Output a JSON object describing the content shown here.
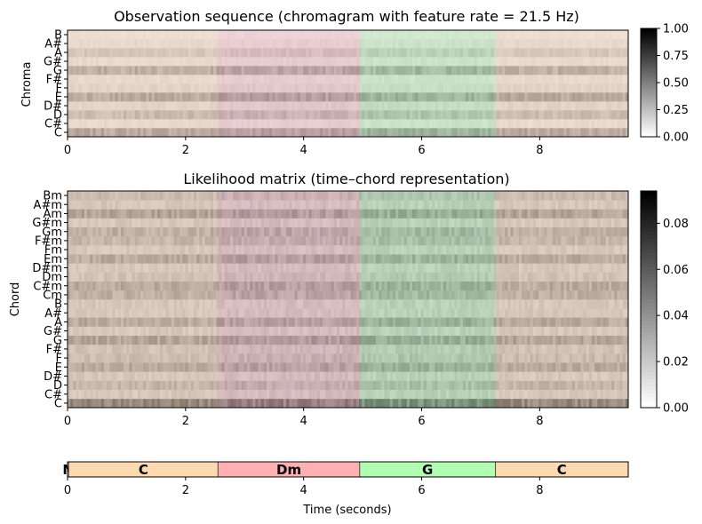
{
  "chart_data": [
    {
      "type": "heatmap",
      "title": "Observation sequence (chromagram with feature rate = 21.5 Hz)",
      "ylabel": "Chroma",
      "xlabel": "",
      "xlim": [
        0,
        9.5
      ],
      "x_ticks": [
        0,
        2,
        4,
        6,
        8
      ],
      "y_tick_labels": [
        "C",
        "C#",
        "D",
        "D#",
        "E",
        "F",
        "F#",
        "G",
        "G#",
        "A",
        "A#",
        "B"
      ],
      "colorbar": {
        "range": [
          0,
          1.0
        ],
        "ticks": [
          "0.00",
          "0.25",
          "0.50",
          "0.75",
          "1.00"
        ]
      },
      "row_intensity": [
        0.55,
        0.15,
        0.4,
        0.2,
        0.55,
        0.2,
        0.15,
        0.5,
        0.15,
        0.3,
        0.15,
        0.1
      ],
      "segments": [
        {
          "label": "C",
          "start": 0.0,
          "end": 2.55,
          "color": "#f6d9c2"
        },
        {
          "label": "Dm",
          "start": 2.55,
          "end": 4.95,
          "color": "#f3c2c8"
        },
        {
          "label": "G",
          "start": 4.95,
          "end": 7.25,
          "color": "#bfe9bf"
        },
        {
          "label": "C",
          "start": 7.25,
          "end": 9.5,
          "color": "#f6d9c2"
        }
      ]
    },
    {
      "type": "heatmap",
      "title": "Likelihood matrix (time–chord representation)",
      "ylabel": "Chord",
      "xlabel": "",
      "xlim": [
        0,
        9.5
      ],
      "x_ticks": [
        0,
        2,
        4,
        6,
        8
      ],
      "y_tick_labels": [
        "C",
        "C#",
        "D",
        "D#",
        "E",
        "F",
        "F#",
        "G",
        "G#",
        "A",
        "A#",
        "B",
        "Cm",
        "C#m",
        "Dm",
        "D#m",
        "Em",
        "Fm",
        "F#m",
        "Gm",
        "G#m",
        "Am",
        "A#m",
        "Bm"
      ],
      "colorbar": {
        "range": [
          0,
          0.094
        ],
        "ticks": [
          "0.00",
          "0.02",
          "0.04",
          "0.06",
          "0.08"
        ]
      },
      "row_intensity": [
        0.85,
        0.3,
        0.45,
        0.3,
        0.55,
        0.4,
        0.35,
        0.6,
        0.3,
        0.55,
        0.3,
        0.3,
        0.5,
        0.55,
        0.35,
        0.3,
        0.55,
        0.3,
        0.45,
        0.5,
        0.3,
        0.6,
        0.3,
        0.4
      ]
    },
    {
      "type": "bar",
      "subtype": "segment-timeline",
      "xlabel": "Time (seconds)",
      "xlim": [
        0,
        9.5
      ],
      "x_ticks": [
        0,
        2,
        4,
        6,
        8
      ],
      "segments": [
        {
          "label": "N",
          "start": 0.0,
          "end": 0.02,
          "color": "#ffffff"
        },
        {
          "label": "C",
          "start": 0.02,
          "end": 2.55,
          "color": "#ffdab0"
        },
        {
          "label": "Dm",
          "start": 2.55,
          "end": 4.95,
          "color": "#ffb0b0"
        },
        {
          "label": "G",
          "start": 4.95,
          "end": 7.25,
          "color": "#b0ffb0"
        },
        {
          "label": "C",
          "start": 7.25,
          "end": 9.5,
          "color": "#ffdab0"
        }
      ]
    }
  ]
}
